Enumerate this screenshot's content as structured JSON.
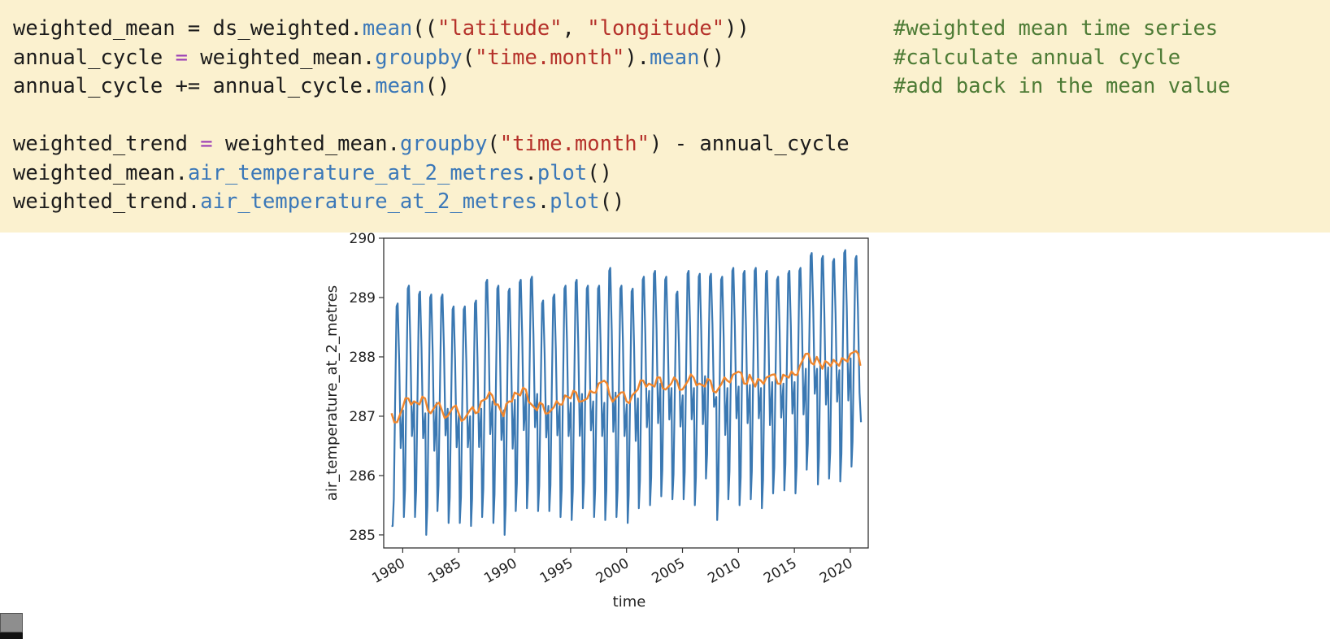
{
  "code_cell": {
    "lines": [
      {
        "segments": [
          {
            "t": "weighted_mean = ds_weighted.",
            "c": ""
          },
          {
            "t": "mean",
            "c": "fn"
          },
          {
            "t": "((",
            "c": ""
          },
          {
            "t": "\"latitude\"",
            "c": "str"
          },
          {
            "t": ", ",
            "c": ""
          },
          {
            "t": "\"longitude\"",
            "c": "str"
          },
          {
            "t": "))",
            "c": ""
          }
        ],
        "comment": "#weighted mean time series"
      },
      {
        "segments": [
          {
            "t": "annual_cycle ",
            "c": ""
          },
          {
            "t": "=",
            "c": "op"
          },
          {
            "t": " weighted_mean.",
            "c": ""
          },
          {
            "t": "groupby",
            "c": "fn"
          },
          {
            "t": "(",
            "c": ""
          },
          {
            "t": "\"time.month\"",
            "c": "str"
          },
          {
            "t": ").",
            "c": ""
          },
          {
            "t": "mean",
            "c": "fn"
          },
          {
            "t": "()",
            "c": ""
          }
        ],
        "comment": "#calculate annual cycle"
      },
      {
        "segments": [
          {
            "t": "annual_cycle += annual_cycle.",
            "c": ""
          },
          {
            "t": "mean",
            "c": "fn"
          },
          {
            "t": "()",
            "c": ""
          }
        ],
        "comment": "#add back in the mean value"
      },
      {
        "segments": [],
        "comment": ""
      },
      {
        "segments": [
          {
            "t": "weighted_trend ",
            "c": ""
          },
          {
            "t": "=",
            "c": "op"
          },
          {
            "t": " weighted_mean.",
            "c": ""
          },
          {
            "t": "groupby",
            "c": "fn"
          },
          {
            "t": "(",
            "c": ""
          },
          {
            "t": "\"time.month\"",
            "c": "str"
          },
          {
            "t": ") - annual_cycle",
            "c": ""
          }
        ],
        "comment": ""
      },
      {
        "segments": [
          {
            "t": "weighted_mean.",
            "c": ""
          },
          {
            "t": "air_temperature_at_2_metres",
            "c": "fn"
          },
          {
            "t": ".",
            "c": ""
          },
          {
            "t": "plot",
            "c": "fn"
          },
          {
            "t": "()",
            "c": ""
          }
        ],
        "comment": ""
      },
      {
        "segments": [
          {
            "t": "weighted_trend.",
            "c": ""
          },
          {
            "t": "air_temperature_at_2_metres",
            "c": "fn"
          },
          {
            "t": ".",
            "c": ""
          },
          {
            "t": "plot",
            "c": "fn"
          },
          {
            "t": "()",
            "c": ""
          }
        ],
        "comment": ""
      }
    ],
    "colors": {
      "background": "#fbf1cf",
      "text": "#1b1b1b",
      "function": "#3b78b8",
      "string": "#b5312a",
      "operator": "#9a3ab5",
      "comment": "#4d7b35"
    }
  },
  "chart_data": {
    "type": "line",
    "title": "",
    "xlabel": "time",
    "ylabel": "air_temperature_at_2_metres",
    "xlim": [
      1978.3,
      2021.6
    ],
    "ylim": [
      284.78,
      290.0
    ],
    "x_ticks": [
      1980,
      1985,
      1990,
      1995,
      2000,
      2005,
      2010,
      2015,
      2020
    ],
    "y_ticks": [
      285,
      286,
      287,
      288,
      289,
      290
    ],
    "grid": false,
    "legend": "none",
    "series": [
      {
        "color": "#3a78b2",
        "description_of_shape": "monthly seasonal cycle, one peak and one trough per year",
        "x_start": 1979.0,
        "x_step": 0.0833333,
        "annual_peaks": [
          {
            "year": 1979,
            "value": 288.9
          },
          {
            "year": 1980,
            "value": 289.2
          },
          {
            "year": 1981,
            "value": 289.1
          },
          {
            "year": 1982,
            "value": 289.05
          },
          {
            "year": 1983,
            "value": 289.05
          },
          {
            "year": 1984,
            "value": 288.85
          },
          {
            "year": 1985,
            "value": 288.85
          },
          {
            "year": 1986,
            "value": 288.95
          },
          {
            "year": 1987,
            "value": 289.3
          },
          {
            "year": 1988,
            "value": 289.2
          },
          {
            "year": 1989,
            "value": 289.15
          },
          {
            "year": 1990,
            "value": 289.3
          },
          {
            "year": 1991,
            "value": 289.35
          },
          {
            "year": 1992,
            "value": 288.95
          },
          {
            "year": 1993,
            "value": 289.05
          },
          {
            "year": 1994,
            "value": 289.2
          },
          {
            "year": 1995,
            "value": 289.3
          },
          {
            "year": 1996,
            "value": 289.2
          },
          {
            "year": 1997,
            "value": 289.2
          },
          {
            "year": 1998,
            "value": 289.5
          },
          {
            "year": 1999,
            "value": 289.2
          },
          {
            "year": 2000,
            "value": 289.15
          },
          {
            "year": 2001,
            "value": 289.35
          },
          {
            "year": 2002,
            "value": 289.45
          },
          {
            "year": 2003,
            "value": 289.35
          },
          {
            "year": 2004,
            "value": 289.1
          },
          {
            "year": 2005,
            "value": 289.45
          },
          {
            "year": 2006,
            "value": 289.4
          },
          {
            "year": 2007,
            "value": 289.4
          },
          {
            "year": 2008,
            "value": 289.35
          },
          {
            "year": 2009,
            "value": 289.5
          },
          {
            "year": 2010,
            "value": 289.45
          },
          {
            "year": 2011,
            "value": 289.5
          },
          {
            "year": 2012,
            "value": 289.45
          },
          {
            "year": 2013,
            "value": 289.35
          },
          {
            "year": 2014,
            "value": 289.45
          },
          {
            "year": 2015,
            "value": 289.5
          },
          {
            "year": 2016,
            "value": 289.75
          },
          {
            "year": 2017,
            "value": 289.7
          },
          {
            "year": 2018,
            "value": 289.65
          },
          {
            "year": 2019,
            "value": 289.8
          },
          {
            "year": 2020,
            "value": 289.7
          }
        ],
        "annual_troughs": [
          {
            "year": 1979,
            "value": 285.15
          },
          {
            "year": 1980,
            "value": 285.3
          },
          {
            "year": 1981,
            "value": 285.3
          },
          {
            "year": 1982,
            "value": 285.0
          },
          {
            "year": 1983,
            "value": 285.4
          },
          {
            "year": 1984,
            "value": 285.2
          },
          {
            "year": 1985,
            "value": 285.2
          },
          {
            "year": 1986,
            "value": 285.15
          },
          {
            "year": 1987,
            "value": 285.3
          },
          {
            "year": 1988,
            "value": 285.2
          },
          {
            "year": 1989,
            "value": 285.0
          },
          {
            "year": 1990,
            "value": 285.4
          },
          {
            "year": 1991,
            "value": 285.45
          },
          {
            "year": 1992,
            "value": 285.4
          },
          {
            "year": 1993,
            "value": 285.4
          },
          {
            "year": 1994,
            "value": 285.3
          },
          {
            "year": 1995,
            "value": 285.25
          },
          {
            "year": 1996,
            "value": 285.45
          },
          {
            "year": 1997,
            "value": 285.3
          },
          {
            "year": 1998,
            "value": 285.25
          },
          {
            "year": 1999,
            "value": 285.3
          },
          {
            "year": 2000,
            "value": 285.2
          },
          {
            "year": 2001,
            "value": 285.45
          },
          {
            "year": 2002,
            "value": 285.5
          },
          {
            "year": 2003,
            "value": 285.65
          },
          {
            "year": 2004,
            "value": 285.6
          },
          {
            "year": 2005,
            "value": 285.6
          },
          {
            "year": 2006,
            "value": 285.5
          },
          {
            "year": 2007,
            "value": 285.95
          },
          {
            "year": 2008,
            "value": 285.25
          },
          {
            "year": 2009,
            "value": 285.6
          },
          {
            "year": 2010,
            "value": 285.5
          },
          {
            "year": 2011,
            "value": 285.6
          },
          {
            "year": 2012,
            "value": 285.45
          },
          {
            "year": 2013,
            "value": 285.7
          },
          {
            "year": 2014,
            "value": 285.75
          },
          {
            "year": 2015,
            "value": 285.7
          },
          {
            "year": 2016,
            "value": 286.1
          },
          {
            "year": 2017,
            "value": 285.85
          },
          {
            "year": 2018,
            "value": 285.95
          },
          {
            "year": 2019,
            "value": 285.9
          },
          {
            "year": 2020,
            "value": 286.15
          }
        ]
      },
      {
        "color": "#f0862d",
        "description_of_shape": "deseasonalized anomaly trend rising from ~287.0 to ~288.0",
        "x": [
          1979.0,
          1979.5,
          1980.0,
          1980.5,
          1981.0,
          1981.5,
          1982.0,
          1982.5,
          1983.0,
          1983.5,
          1984.0,
          1984.5,
          1985.0,
          1985.5,
          1986.0,
          1986.5,
          1987.0,
          1987.5,
          1988.0,
          1988.5,
          1989.0,
          1989.5,
          1990.0,
          1990.5,
          1991.0,
          1991.5,
          1992.0,
          1992.5,
          1993.0,
          1993.5,
          1994.0,
          1994.5,
          1995.0,
          1995.5,
          1996.0,
          1996.5,
          1997.0,
          1997.5,
          1998.0,
          1998.5,
          1999.0,
          1999.5,
          2000.0,
          2000.5,
          2001.0,
          2001.5,
          2002.0,
          2002.5,
          2003.0,
          2003.5,
          2004.0,
          2004.5,
          2005.0,
          2005.5,
          2006.0,
          2006.5,
          2007.0,
          2007.5,
          2008.0,
          2008.5,
          2009.0,
          2009.5,
          2010.0,
          2010.5,
          2011.0,
          2011.5,
          2012.0,
          2012.5,
          2013.0,
          2013.5,
          2014.0,
          2014.5,
          2015.0,
          2015.5,
          2016.0,
          2016.5,
          2017.0,
          2017.5,
          2018.0,
          2018.5,
          2019.0,
          2019.5,
          2020.0,
          2020.5,
          2020.9
        ],
        "y": [
          287.05,
          286.9,
          287.15,
          287.3,
          287.25,
          287.2,
          287.3,
          287.05,
          287.2,
          287.1,
          287.0,
          287.15,
          287.05,
          286.95,
          287.1,
          287.05,
          287.25,
          287.3,
          287.35,
          287.2,
          287.0,
          287.25,
          287.4,
          287.35,
          287.45,
          287.2,
          287.1,
          287.2,
          287.05,
          287.15,
          287.2,
          287.35,
          287.3,
          287.4,
          287.25,
          287.3,
          287.4,
          287.55,
          287.6,
          287.35,
          287.3,
          287.4,
          287.25,
          287.35,
          287.45,
          287.6,
          287.55,
          287.5,
          287.65,
          287.45,
          287.55,
          287.6,
          287.45,
          287.6,
          287.65,
          287.55,
          287.5,
          287.6,
          287.4,
          287.55,
          287.6,
          287.7,
          287.75,
          287.55,
          287.7,
          287.5,
          287.6,
          287.65,
          287.7,
          287.55,
          287.7,
          287.65,
          287.7,
          287.85,
          288.05,
          287.9,
          288.0,
          287.8,
          287.9,
          287.95,
          287.85,
          287.95,
          288.05,
          288.1,
          287.85
        ]
      }
    ]
  },
  "side_widget": {
    "colors": {
      "top": "#8e8e8e",
      "bottom": "#111111"
    }
  }
}
